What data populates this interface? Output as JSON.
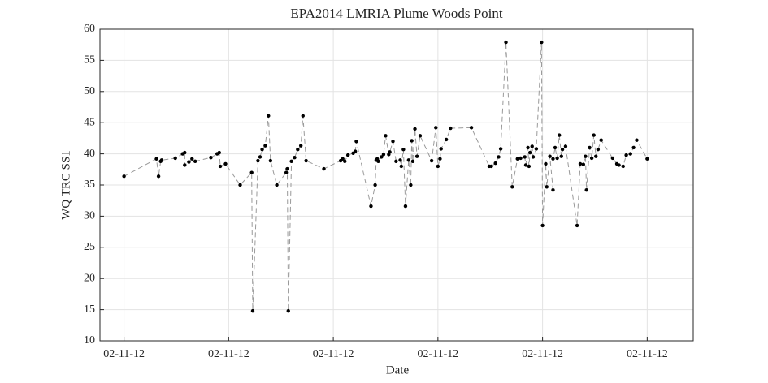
{
  "chart_data": {
    "type": "line",
    "title": "EPA2014 LMRIA Plume Woods Point",
    "x_label": "Date",
    "y_label": "WQ TRC SS1",
    "x": [
      0,
      0.31,
      0.33,
      0.35,
      0.36,
      0.49,
      0.56,
      0.58,
      0.58,
      0.62,
      0.65,
      0.68,
      0.83,
      0.89,
      0.91,
      0.92,
      0.97,
      1.11,
      1.22,
      1.23,
      1.28,
      1.3,
      1.32,
      1.35,
      1.38,
      1.4,
      1.46,
      1.55,
      1.56,
      1.57,
      1.6,
      1.63,
      1.66,
      1.69,
      1.71,
      1.74,
      1.91,
      2.07,
      2.09,
      2.11,
      2.14,
      2.19,
      2.21,
      2.22,
      2.36,
      2.4,
      2.41,
      2.42,
      2.43,
      2.46,
      2.48,
      2.5,
      2.53,
      2.54,
      2.57,
      2.6,
      2.64,
      2.65,
      2.67,
      2.69,
      2.72,
      2.74,
      2.75,
      2.76,
      2.78,
      2.8,
      2.83,
      2.94,
      2.98,
      3.0,
      3.02,
      3.03,
      3.08,
      3.12,
      3.32,
      3.49,
      3.51,
      3.55,
      3.58,
      3.6,
      3.65,
      3.71,
      3.76,
      3.79,
      3.83,
      3.84,
      3.86,
      3.87,
      3.88,
      3.9,
      3.91,
      3.94,
      3.99,
      4.0,
      4.03,
      4.04,
      4.07,
      4.1,
      4.1,
      4.12,
      4.14,
      4.16,
      4.18,
      4.19,
      4.22,
      4.33,
      4.36,
      4.39,
      4.41,
      4.42,
      4.45,
      4.47,
      4.49,
      4.51,
      4.53,
      4.56,
      4.67,
      4.71,
      4.73,
      4.77,
      4.8,
      4.84,
      4.87,
      4.9,
      5.0
    ],
    "series": [
      {
        "name": "WQ TRC SS1",
        "color": "#000000",
        "line_color": "#999999",
        "values": [
          36.4,
          39.2,
          36.4,
          38.8,
          39.0,
          39.3,
          40.0,
          40.2,
          38.2,
          38.7,
          39.2,
          38.8,
          39.4,
          40.0,
          40.2,
          38.0,
          38.4,
          35.0,
          37.0,
          14.8,
          38.9,
          39.5,
          40.7,
          41.3,
          46.1,
          38.9,
          35.0,
          37.0,
          37.6,
          14.8,
          38.8,
          39.4,
          40.7,
          41.3,
          46.1,
          38.9,
          37.6,
          38.9,
          39.2,
          38.8,
          39.8,
          40.1,
          40.4,
          42.0,
          31.6,
          35.0,
          39.0,
          39.2,
          38.8,
          39.5,
          39.9,
          42.9,
          39.9,
          40.3,
          42.0,
          38.8,
          39.0,
          38.0,
          40.7,
          31.6,
          39.0,
          35.0,
          42.1,
          38.8,
          44.0,
          39.6,
          42.9,
          38.9,
          44.2,
          38.0,
          39.2,
          40.8,
          42.3,
          44.1,
          44.2,
          38.0,
          38.0,
          38.5,
          39.5,
          40.8,
          57.9,
          34.7,
          39.2,
          39.3,
          39.5,
          38.2,
          41.0,
          38.0,
          40.2,
          41.2,
          39.5,
          40.8,
          57.9,
          28.5,
          38.4,
          34.7,
          39.6,
          34.2,
          39.2,
          41.0,
          39.3,
          43.0,
          39.6,
          40.7,
          41.2,
          28.5,
          38.4,
          38.3,
          39.6,
          34.2,
          41.0,
          39.3,
          43.0,
          39.6,
          40.7,
          42.2,
          39.3,
          38.4,
          38.2,
          38.0,
          39.8,
          40.0,
          41.0,
          42.2,
          39.2
        ]
      }
    ],
    "xlim": [
      -0.23,
      5.44
    ],
    "xticks": [
      {
        "value": 0,
        "label": "02-11-12"
      },
      {
        "value": 1,
        "label": "02-11-12"
      },
      {
        "value": 2,
        "label": "02-11-12"
      },
      {
        "value": 3,
        "label": "02-11-12"
      },
      {
        "value": 4,
        "label": "02-11-12"
      },
      {
        "value": 5,
        "label": "02-11-12"
      }
    ],
    "ylim": [
      10,
      60
    ],
    "yticks": [
      10,
      15,
      20,
      25,
      30,
      35,
      40,
      45,
      50,
      55,
      60
    ],
    "grid": true
  }
}
